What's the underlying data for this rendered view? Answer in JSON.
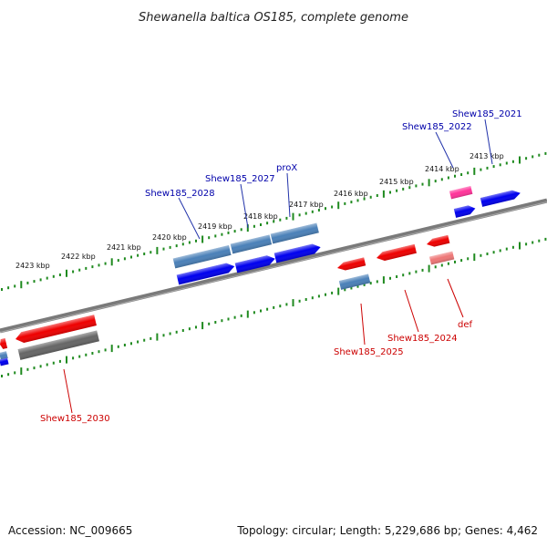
{
  "title": "Shewanella baltica OS185, complete genome",
  "footer": {
    "accession": "Accession: NC_009665",
    "summary": "Topology: circular; Length: 5,229,686 bp; Genes: 4,462"
  },
  "colors": {
    "backbone": "#7a7a7a",
    "tick": "#1f8a1f",
    "label_forward": "#0000aa",
    "label_reverse": "#cc0000",
    "gene_blue": "#0000ee",
    "gene_steel": "#4a80b8",
    "gene_red": "#ee0000",
    "gene_pink": "#ff3399",
    "gene_salmon": "#ee7777",
    "gene_gray": "#666666"
  },
  "kbp_labels": [
    "2413 kbp",
    "2414 kbp",
    "2415 kbp",
    "2416 kbp",
    "2417 kbp",
    "2418 kbp",
    "2419 kbp",
    "2420 kbp",
    "2421 kbp",
    "2422 kbp",
    "2423 kbp"
  ],
  "gene_labels": {
    "forward": [
      "Shew185_2021",
      "Shew185_2022",
      "Shew185_2027",
      "proX",
      "Shew185_2028"
    ],
    "reverse": [
      "Shew185_2024",
      "Shew185_2025",
      "def",
      "Shew185_2030"
    ]
  }
}
